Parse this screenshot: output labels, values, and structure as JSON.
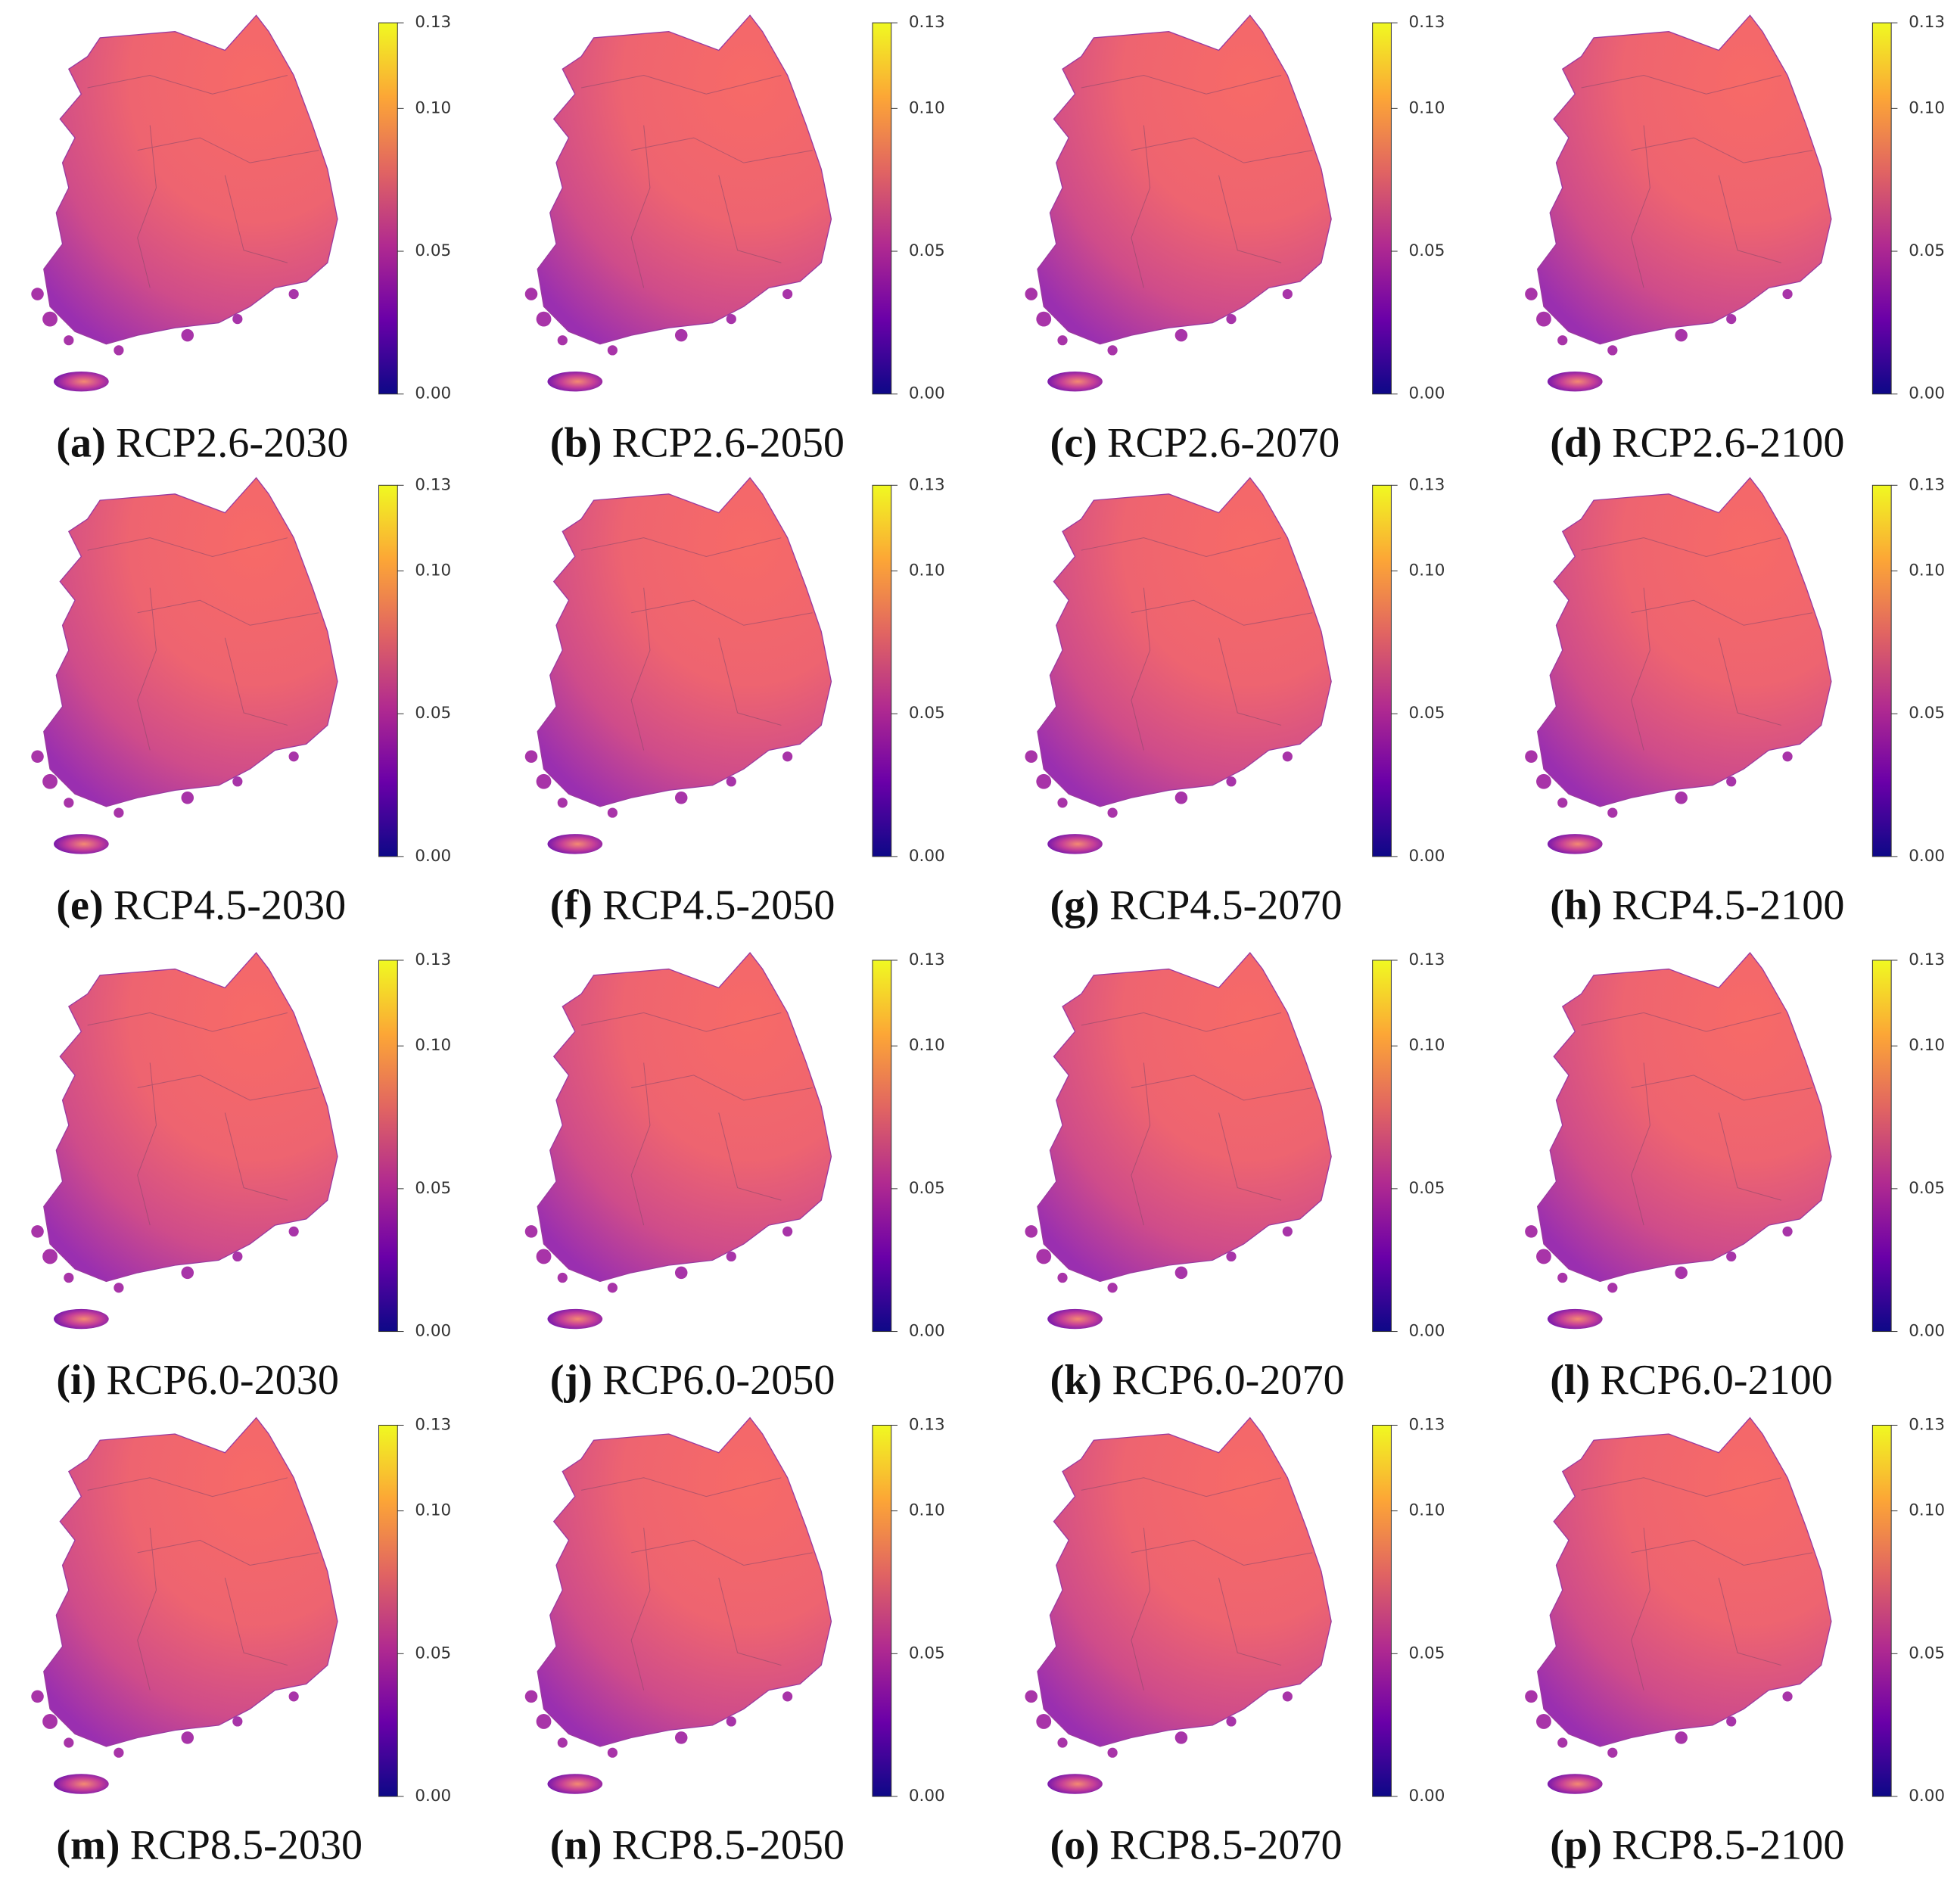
{
  "panels": [
    {
      "tag": "(a)",
      "caption": "RCP2.6-2030"
    },
    {
      "tag": "(b)",
      "caption": "RCP2.6-2050"
    },
    {
      "tag": "(c)",
      "caption": "RCP2.6-2070"
    },
    {
      "tag": "(d)",
      "caption": "RCP2.6-2100"
    },
    {
      "tag": "(e)",
      "caption": "RCP4.5-2030"
    },
    {
      "tag": "(f)",
      "caption": "RCP4.5-2050"
    },
    {
      "tag": "(g)",
      "caption": "RCP4.5-2070"
    },
    {
      "tag": "(h)",
      "caption": "RCP4.5-2100"
    },
    {
      "tag": "(i)",
      "caption": "RCP6.0-2030"
    },
    {
      "tag": "(j)",
      "caption": "RCP6.0-2050"
    },
    {
      "tag": "(k)",
      "caption": "RCP6.0-2070"
    },
    {
      "tag": "(l)",
      "caption": "RCP6.0-2100"
    },
    {
      "tag": "(m)",
      "caption": "RCP8.5-2030"
    },
    {
      "tag": "(n)",
      "caption": "RCP8.5-2050"
    },
    {
      "tag": "(o)",
      "caption": "RCP8.5-2070"
    },
    {
      "tag": "(p)",
      "caption": "RCP8.5-2100"
    }
  ],
  "colorbar": {
    "ylim": [
      0,
      0.13
    ],
    "yticks": [
      {
        "value": 0,
        "label": "0.00"
      },
      0.05,
      {
        "value": 0.1,
        "label": "0.10"
      },
      0.13
    ]
  }
}
